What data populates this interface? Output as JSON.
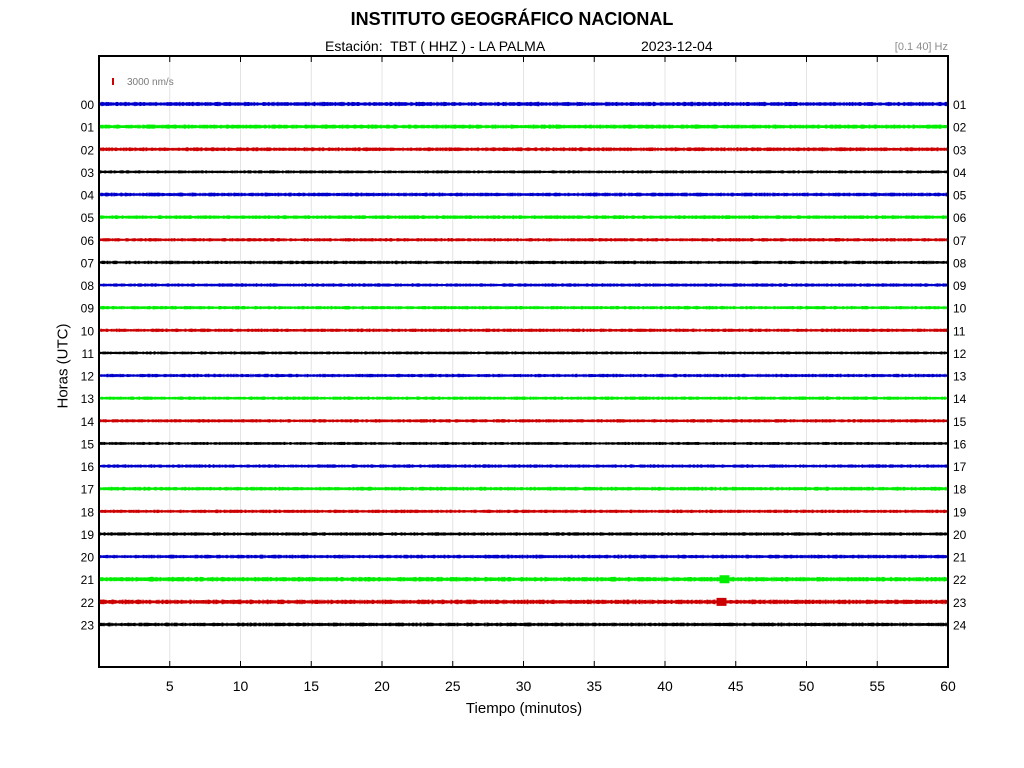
{
  "header": {
    "title": "INSTITUTO GEOGRÁFICO NACIONAL",
    "station_label": "Estación:  TBT ( HHZ ) - LA PALMA",
    "date": "2023-12-04",
    "filter": "[0.1 40] Hz"
  },
  "chart_data": {
    "type": "line",
    "title": "INSTITUTO GEOGRÁFICO NACIONAL",
    "xlabel": "Tiempo (minutos)",
    "ylabel": "Horas (UTC)",
    "xlim": [
      0,
      60
    ],
    "x_ticks": [
      5,
      10,
      15,
      20,
      25,
      30,
      35,
      40,
      45,
      50,
      55,
      60
    ],
    "grid": true,
    "scale_bar": {
      "label": "3000 nm/s",
      "color": "#cc0000"
    },
    "left_hour_labels": [
      "00",
      "01",
      "02",
      "03",
      "04",
      "05",
      "06",
      "07",
      "08",
      "09",
      "10",
      "11",
      "12",
      "13",
      "14",
      "15",
      "16",
      "17",
      "18",
      "19",
      "20",
      "21",
      "22",
      "23"
    ],
    "right_hour_labels": [
      "01",
      "02",
      "03",
      "04",
      "05",
      "06",
      "07",
      "08",
      "09",
      "10",
      "11",
      "12",
      "13",
      "14",
      "15",
      "16",
      "17",
      "18",
      "19",
      "20",
      "21",
      "22",
      "23",
      "24"
    ],
    "trace_colors": [
      "#0000cc",
      "#00ee00",
      "#cc0000",
      "#000000"
    ],
    "trace_amplitude": [
      2.2,
      2.2,
      2.0,
      1.6,
      2.0,
      2.0,
      1.8,
      1.8,
      1.8,
      1.8,
      1.8,
      1.6,
      1.8,
      1.8,
      1.8,
      1.6,
      1.8,
      2.0,
      1.8,
      1.8,
      2.0,
      2.4,
      2.4,
      2.0
    ],
    "events": [
      {
        "hour": 21,
        "minute": 44.2,
        "amplitude": 4
      },
      {
        "hour": 22,
        "minute": 44.0,
        "amplitude": 4
      }
    ]
  }
}
